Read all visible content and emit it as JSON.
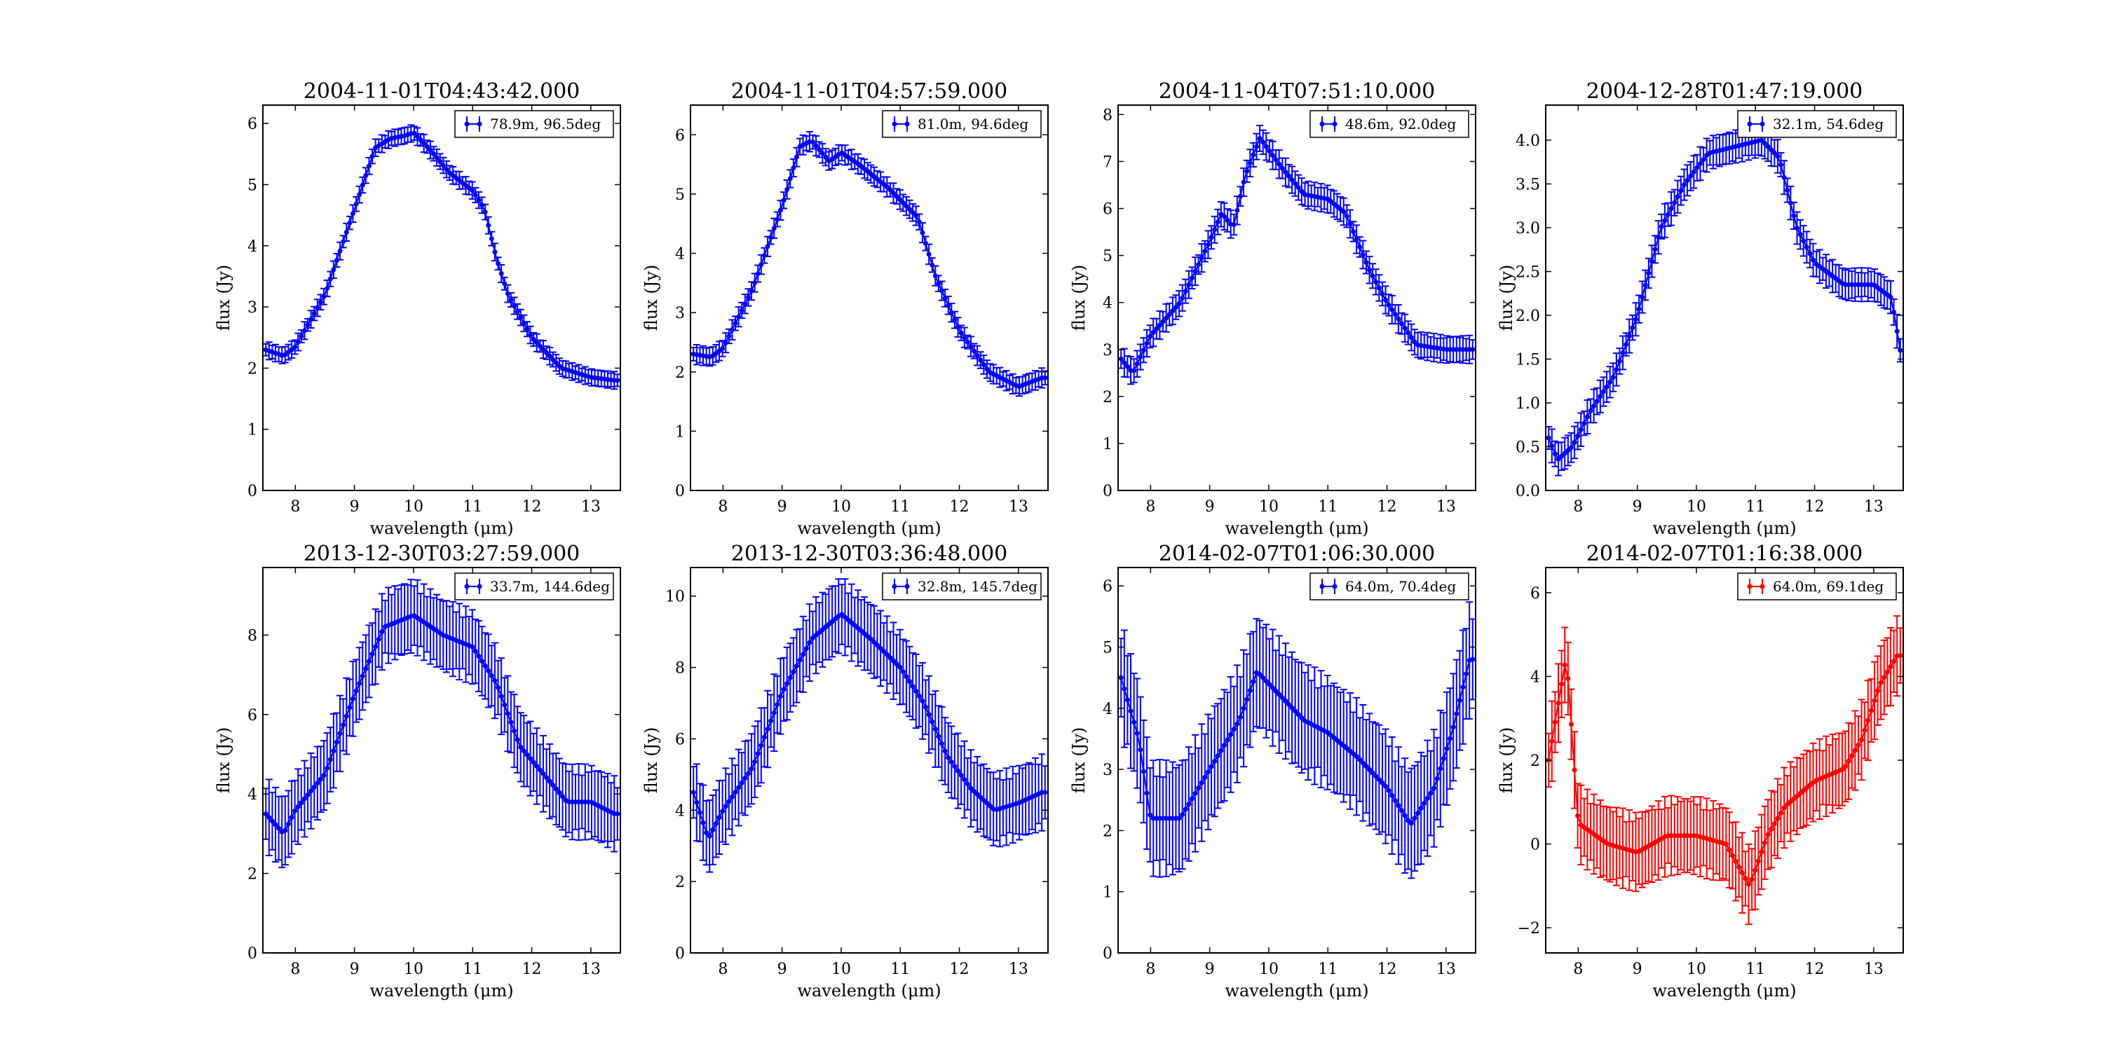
{
  "figure": {
    "xlabel": "wavelength (μm)",
    "ylabel": "flux (Jy)"
  },
  "chart_data": [
    {
      "type": "errorbar",
      "title": "2004-11-01T04:43:42.000",
      "legend": "78.9m, 96.5deg",
      "color": "#0000ff",
      "xlim": [
        7.45,
        13.5
      ],
      "ylim": [
        0,
        6.3
      ],
      "xticks": [
        8,
        9,
        10,
        11,
        12,
        13
      ],
      "yticks": [
        0,
        1,
        2,
        3,
        4,
        5,
        6
      ],
      "err": 0.12,
      "knots": [
        [
          7.5,
          2.3
        ],
        [
          7.8,
          2.2
        ],
        [
          8.0,
          2.35
        ],
        [
          8.5,
          3.2
        ],
        [
          9.0,
          4.6
        ],
        [
          9.35,
          5.6
        ],
        [
          9.6,
          5.75
        ],
        [
          9.85,
          5.8
        ],
        [
          10.0,
          5.85
        ],
        [
          10.3,
          5.55
        ],
        [
          10.6,
          5.2
        ],
        [
          11.0,
          4.9
        ],
        [
          11.2,
          4.6
        ],
        [
          11.4,
          3.8
        ],
        [
          11.6,
          3.2
        ],
        [
          12.0,
          2.5
        ],
        [
          12.5,
          2.0
        ],
        [
          13.0,
          1.85
        ],
        [
          13.4,
          1.8
        ]
      ]
    },
    {
      "type": "errorbar",
      "title": "2004-11-01T04:57:59.000",
      "legend": "81.0m, 94.6deg",
      "color": "#0000ff",
      "xlim": [
        7.45,
        13.5
      ],
      "ylim": [
        0,
        6.5
      ],
      "xticks": [
        8,
        9,
        10,
        11,
        12,
        13
      ],
      "yticks": [
        0,
        1,
        2,
        3,
        4,
        5,
        6
      ],
      "err": 0.14,
      "knots": [
        [
          7.5,
          2.3
        ],
        [
          7.8,
          2.25
        ],
        [
          8.0,
          2.4
        ],
        [
          8.5,
          3.4
        ],
        [
          9.0,
          4.8
        ],
        [
          9.3,
          5.8
        ],
        [
          9.5,
          5.9
        ],
        [
          9.8,
          5.55
        ],
        [
          10.0,
          5.7
        ],
        [
          10.3,
          5.5
        ],
        [
          10.8,
          5.1
        ],
        [
          11.3,
          4.6
        ],
        [
          11.6,
          3.6
        ],
        [
          12.0,
          2.7
        ],
        [
          12.5,
          2.0
        ],
        [
          13.0,
          1.75
        ],
        [
          13.4,
          1.9
        ]
      ]
    },
    {
      "type": "errorbar",
      "title": "2004-11-04T07:51:10.000",
      "legend": "48.6m, 92.0deg",
      "color": "#0000ff",
      "xlim": [
        7.45,
        13.5
      ],
      "ylim": [
        0,
        8.2
      ],
      "xticks": [
        8,
        9,
        10,
        11,
        12,
        13
      ],
      "yticks": [
        0,
        1,
        2,
        3,
        4,
        5,
        6,
        7,
        8
      ],
      "err": 0.25,
      "knots": [
        [
          7.5,
          2.8
        ],
        [
          7.7,
          2.5
        ],
        [
          8.0,
          3.3
        ],
        [
          8.5,
          4.0
        ],
        [
          9.0,
          5.3
        ],
        [
          9.2,
          5.9
        ],
        [
          9.4,
          5.6
        ],
        [
          9.6,
          6.7
        ],
        [
          9.85,
          7.5
        ],
        [
          10.2,
          6.9
        ],
        [
          10.6,
          6.3
        ],
        [
          11.0,
          6.2
        ],
        [
          11.3,
          5.9
        ],
        [
          11.7,
          4.7
        ],
        [
          12.0,
          4.0
        ],
        [
          12.5,
          3.1
        ],
        [
          13.0,
          3.0
        ],
        [
          13.4,
          3.0
        ]
      ]
    },
    {
      "type": "errorbar",
      "title": "2004-12-28T01:47:19.000",
      "legend": "32.1m, 54.6deg",
      "color": "#0000ff",
      "xlim": [
        7.45,
        13.5
      ],
      "ylim": [
        0,
        4.4
      ],
      "xticks": [
        8,
        9,
        10,
        11,
        12,
        13
      ],
      "yticks": [
        0.0,
        0.5,
        1.0,
        1.5,
        2.0,
        2.5,
        3.0,
        3.5,
        4.0
      ],
      "err": 0.16,
      "knots": [
        [
          7.5,
          0.6
        ],
        [
          7.65,
          0.35
        ],
        [
          7.9,
          0.5
        ],
        [
          8.2,
          0.9
        ],
        [
          8.6,
          1.3
        ],
        [
          9.0,
          2.0
        ],
        [
          9.4,
          3.0
        ],
        [
          9.8,
          3.5
        ],
        [
          10.2,
          3.85
        ],
        [
          10.8,
          3.95
        ],
        [
          11.1,
          4.0
        ],
        [
          11.4,
          3.8
        ],
        [
          11.7,
          3.0
        ],
        [
          12.0,
          2.6
        ],
        [
          12.5,
          2.35
        ],
        [
          13.0,
          2.35
        ],
        [
          13.3,
          2.2
        ],
        [
          13.45,
          1.6
        ]
      ]
    },
    {
      "type": "errorbar",
      "title": "2013-12-30T03:27:59.000",
      "legend": "33.7m, 144.6deg",
      "color": "#0000ff",
      "xlim": [
        7.45,
        13.5
      ],
      "ylim": [
        0,
        9.7
      ],
      "xticks": [
        8,
        9,
        10,
        11,
        12,
        13
      ],
      "yticks": [
        0,
        2,
        4,
        6,
        8
      ],
      "err": 0.8,
      "knots": [
        [
          7.5,
          3.5
        ],
        [
          7.8,
          3.0
        ],
        [
          8.0,
          3.6
        ],
        [
          8.5,
          4.5
        ],
        [
          9.0,
          6.5
        ],
        [
          9.5,
          8.2
        ],
        [
          10.0,
          8.5
        ],
        [
          10.5,
          8.0
        ],
        [
          11.0,
          7.7
        ],
        [
          11.4,
          6.8
        ],
        [
          11.8,
          5.2
        ],
        [
          12.2,
          4.5
        ],
        [
          12.6,
          3.8
        ],
        [
          13.0,
          3.8
        ],
        [
          13.4,
          3.5
        ]
      ]
    },
    {
      "type": "errorbar",
      "title": "2013-12-30T03:36:48.000",
      "legend": "32.8m, 145.7deg",
      "color": "#0000ff",
      "xlim": [
        7.45,
        13.5
      ],
      "ylim": [
        0,
        10.8
      ],
      "xticks": [
        8,
        9,
        10,
        11,
        12,
        13
      ],
      "yticks": [
        0,
        2,
        4,
        6,
        8,
        10
      ],
      "err": 0.9,
      "knots": [
        [
          7.5,
          4.5
        ],
        [
          7.75,
          3.2
        ],
        [
          8.0,
          4.0
        ],
        [
          8.5,
          5.2
        ],
        [
          9.0,
          7.3
        ],
        [
          9.5,
          8.8
        ],
        [
          10.0,
          9.5
        ],
        [
          10.5,
          8.8
        ],
        [
          11.0,
          8.0
        ],
        [
          11.4,
          7.0
        ],
        [
          11.8,
          5.5
        ],
        [
          12.2,
          4.6
        ],
        [
          12.6,
          4.0
        ],
        [
          13.0,
          4.2
        ],
        [
          13.4,
          4.5
        ]
      ]
    },
    {
      "type": "errorbar",
      "title": "2014-02-07T01:06:30.000",
      "legend": "64.0m, 70.4deg",
      "color": "#0000ff",
      "xlim": [
        7.45,
        13.5
      ],
      "ylim": [
        0,
        6.3
      ],
      "xticks": [
        8,
        9,
        10,
        11,
        12,
        13
      ],
      "yticks": [
        0,
        1,
        2,
        3,
        4,
        5,
        6
      ],
      "err": 0.8,
      "knots": [
        [
          7.5,
          4.5
        ],
        [
          7.8,
          3.5
        ],
        [
          8.0,
          2.2
        ],
        [
          8.5,
          2.2
        ],
        [
          9.0,
          3.0
        ],
        [
          9.5,
          3.8
        ],
        [
          9.8,
          4.6
        ],
        [
          10.2,
          4.2
        ],
        [
          10.6,
          3.8
        ],
        [
          11.0,
          3.6
        ],
        [
          11.5,
          3.2
        ],
        [
          12.0,
          2.7
        ],
        [
          12.4,
          2.1
        ],
        [
          12.8,
          2.7
        ],
        [
          13.1,
          3.6
        ],
        [
          13.4,
          4.8
        ]
      ]
    },
    {
      "type": "errorbar",
      "title": "2014-02-07T01:16:38.000",
      "legend": "64.0m, 69.1deg",
      "color": "#ff0000",
      "xlim": [
        7.45,
        13.5
      ],
      "ylim": [
        -2.6,
        6.6
      ],
      "xticks": [
        8,
        9,
        10,
        11,
        12,
        13
      ],
      "yticks": [
        -2,
        0,
        2,
        4,
        6
      ],
      "err": 0.8,
      "knots": [
        [
          7.5,
          2.0
        ],
        [
          7.8,
          4.5
        ],
        [
          8.0,
          0.5
        ],
        [
          8.5,
          0.0
        ],
        [
          9.0,
          -0.2
        ],
        [
          9.5,
          0.2
        ],
        [
          10.0,
          0.2
        ],
        [
          10.5,
          0.0
        ],
        [
          10.9,
          -1.0
        ],
        [
          11.2,
          0.2
        ],
        [
          11.5,
          0.9
        ],
        [
          12.0,
          1.5
        ],
        [
          12.5,
          1.8
        ],
        [
          12.8,
          2.5
        ],
        [
          13.1,
          3.8
        ],
        [
          13.4,
          4.5
        ]
      ]
    }
  ]
}
